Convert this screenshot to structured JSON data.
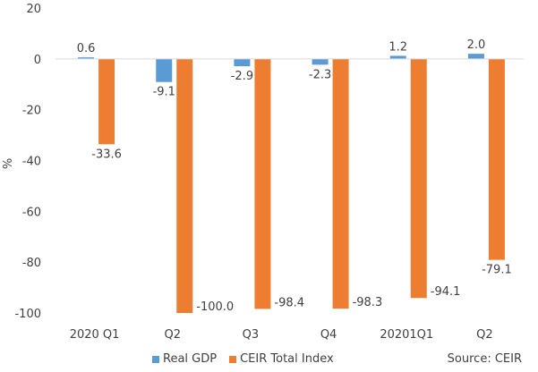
{
  "colors": {
    "real_gdp": "#5b9bd5",
    "ceir": "#ed7d31",
    "axis": "#d9d9d9",
    "text": "#404040"
  },
  "chart_data": {
    "type": "bar",
    "categories": [
      "2020 Q1",
      "Q2",
      "Q3",
      "Q4",
      "20201Q1",
      "Q2"
    ],
    "series": [
      {
        "name": "Real GDP",
        "values": [
          0.6,
          -9.1,
          -2.9,
          -2.3,
          1.2,
          2.0
        ],
        "labels": [
          "0.6",
          "-9.1",
          "-2.9",
          "-2.3",
          "1.2",
          "2.0"
        ]
      },
      {
        "name": "CEIR Total Index",
        "values": [
          -33.6,
          -100.0,
          -98.4,
          -98.3,
          -94.1,
          -79.1
        ],
        "labels": [
          "-33.6",
          "-100.0",
          "-98.4",
          "-98.3",
          "-94.1",
          "-79.1"
        ]
      }
    ],
    "ylabel": "%",
    "ylim": [
      -100,
      20
    ],
    "yticks": [
      20,
      0,
      -20,
      -40,
      -60,
      -80,
      -100
    ],
    "grid": false,
    "legend": "bottom"
  },
  "source": "Source: CEIR"
}
